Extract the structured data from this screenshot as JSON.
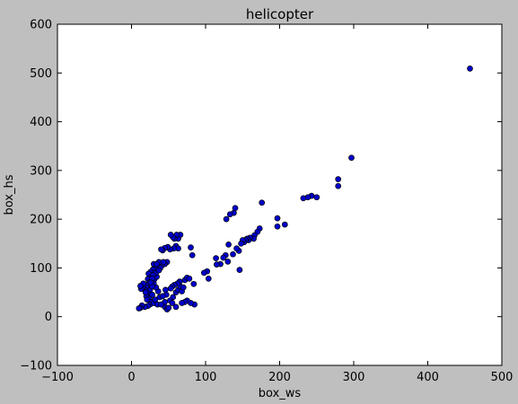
{
  "chart_data": {
    "type": "scatter",
    "title": "helicopter",
    "xlabel": "box_ws",
    "ylabel": "box_hs",
    "xlim": [
      -100,
      500
    ],
    "ylim": [
      -100,
      600
    ],
    "xticks": [
      -100,
      0,
      100,
      200,
      300,
      400,
      500
    ],
    "yticks": [
      -100,
      0,
      100,
      200,
      300,
      400,
      500,
      600
    ],
    "grid": false,
    "marker_color": "#0000cc",
    "background": "#bfbfbf",
    "plot_background": "#ffffff",
    "points": [
      [
        457,
        509
      ],
      [
        297,
        326
      ],
      [
        279,
        282
      ],
      [
        279,
        268
      ],
      [
        250,
        245
      ],
      [
        243,
        248
      ],
      [
        238,
        245
      ],
      [
        232,
        243
      ],
      [
        207,
        189
      ],
      [
        197,
        202
      ],
      [
        197,
        185
      ],
      [
        176,
        234
      ],
      [
        173,
        181
      ],
      [
        170,
        174
      ],
      [
        166,
        167
      ],
      [
        165,
        160
      ],
      [
        160,
        162
      ],
      [
        158,
        157
      ],
      [
        156,
        160
      ],
      [
        154,
        157
      ],
      [
        152,
        153
      ],
      [
        150,
        157
      ],
      [
        148,
        150
      ],
      [
        146,
        96
      ],
      [
        145,
        135
      ],
      [
        142,
        140
      ],
      [
        140,
        223
      ],
      [
        138,
        213
      ],
      [
        137,
        128
      ],
      [
        133,
        210
      ],
      [
        131,
        148
      ],
      [
        130,
        113
      ],
      [
        128,
        200
      ],
      [
        127,
        126
      ],
      [
        124,
        121
      ],
      [
        120,
        108
      ],
      [
        115,
        107
      ],
      [
        114,
        120
      ],
      [
        104,
        78
      ],
      [
        102,
        93
      ],
      [
        98,
        90
      ],
      [
        84,
        67
      ],
      [
        82,
        126
      ],
      [
        80,
        142
      ],
      [
        85,
        25
      ],
      [
        80,
        28
      ],
      [
        75,
        33
      ],
      [
        72,
        30
      ],
      [
        68,
        28
      ],
      [
        66,
        168
      ],
      [
        63,
        160
      ],
      [
        61,
        168
      ],
      [
        58,
        160
      ],
      [
        56,
        163
      ],
      [
        53,
        168
      ],
      [
        60,
        145
      ],
      [
        63,
        140
      ],
      [
        57,
        140
      ],
      [
        52,
        138
      ],
      [
        49,
        143
      ],
      [
        45,
        141
      ],
      [
        42,
        136
      ],
      [
        40,
        138
      ],
      [
        48,
        112
      ],
      [
        45,
        108
      ],
      [
        41,
        105
      ],
      [
        37,
        112
      ],
      [
        35,
        103
      ],
      [
        32,
        101
      ],
      [
        30,
        108
      ],
      [
        29,
        97
      ],
      [
        26,
        92
      ],
      [
        23,
        88
      ],
      [
        25,
        80
      ],
      [
        22,
        77
      ],
      [
        24,
        70
      ],
      [
        22,
        65
      ],
      [
        20,
        60
      ],
      [
        18,
        55
      ],
      [
        15,
        60
      ],
      [
        13,
        57
      ],
      [
        16,
        68
      ],
      [
        12,
        63
      ],
      [
        25,
        55
      ],
      [
        22,
        48
      ],
      [
        20,
        42
      ],
      [
        24,
        37
      ],
      [
        27,
        30
      ],
      [
        25,
        25
      ],
      [
        22,
        22
      ],
      [
        18,
        20
      ],
      [
        14,
        23
      ],
      [
        12,
        18
      ],
      [
        10,
        17
      ],
      [
        30,
        28
      ],
      [
        32,
        35
      ],
      [
        35,
        25
      ],
      [
        38,
        40
      ],
      [
        36,
        52
      ],
      [
        33,
        60
      ],
      [
        30,
        68
      ],
      [
        28,
        62
      ],
      [
        31,
        77
      ],
      [
        34,
        82
      ],
      [
        33,
        90
      ],
      [
        29,
        85
      ],
      [
        45,
        20
      ],
      [
        48,
        15
      ],
      [
        50,
        18
      ],
      [
        45,
        30
      ],
      [
        47,
        45
      ],
      [
        46,
        55
      ],
      [
        56,
        40
      ],
      [
        60,
        50
      ],
      [
        63,
        55
      ],
      [
        66,
        62
      ],
      [
        68,
        52
      ],
      [
        70,
        60
      ],
      [
        72,
        75
      ],
      [
        75,
        80
      ],
      [
        78,
        78
      ],
      [
        65,
        72
      ],
      [
        62,
        68
      ],
      [
        58,
        65
      ],
      [
        55,
        62
      ],
      [
        53,
        58
      ],
      [
        60,
        20
      ],
      [
        43,
        112
      ],
      [
        39,
        100
      ],
      [
        37,
        95
      ],
      [
        34,
        108
      ],
      [
        28,
        78
      ],
      [
        26,
        70
      ],
      [
        19,
        50
      ],
      [
        21,
        35
      ],
      [
        28,
        45
      ],
      [
        42,
        42
      ],
      [
        40,
        25
      ],
      [
        52,
        33
      ],
      [
        55,
        28
      ]
    ]
  }
}
